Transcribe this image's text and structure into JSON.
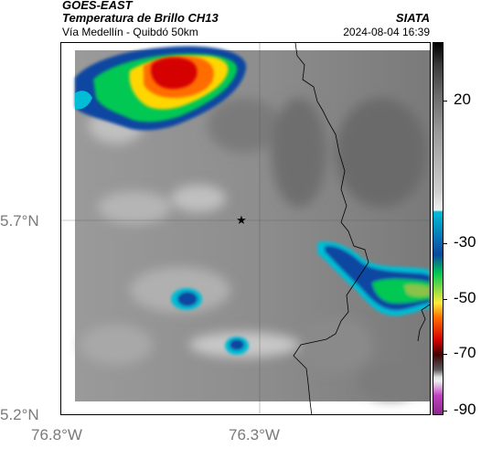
{
  "header": {
    "satellite": "GOES-EAST",
    "product": "Temperatura de Brillo CH13",
    "region": "Vía Medellín - Quibdó 50km",
    "agency": "SIATA",
    "datetime": "2024-08-04 16:39"
  },
  "map": {
    "lat_labels": [
      "5.7°N",
      "5.2°N"
    ],
    "lon_labels": [
      "76.8°W",
      "76.3°W"
    ],
    "marker": "star-icon",
    "colormap": {
      "stops": [
        "#000000",
        "#a0a0a0",
        "#e0e0e0",
        "#00bcd4",
        "#1565c0",
        "#00c853",
        "#ffeb3b",
        "#ff6d00",
        "#d50000",
        "#3e0000",
        "#ffffff",
        "#c040c0"
      ]
    }
  },
  "colorbar": {
    "labels": [
      "20",
      "-30",
      "-50",
      "-70",
      "-90"
    ]
  }
}
